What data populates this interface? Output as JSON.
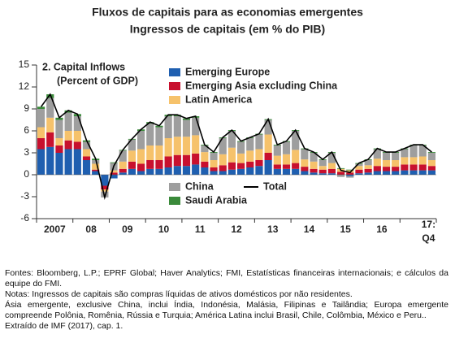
{
  "chart_data": {
    "type": "bar",
    "title": "Fluxos de capitais para as economias emergentes",
    "subtitle": "Ingressos de capitais (em % do PIB)",
    "panel_title": "2. Capital Inflows",
    "panel_subtitle": "(Percent of GDP)",
    "categories": [
      null,
      "2007",
      null,
      null,
      null,
      "08",
      null,
      null,
      null,
      "09",
      null,
      null,
      null,
      "10",
      null,
      null,
      null,
      "11",
      null,
      null,
      null,
      "12",
      null,
      null,
      null,
      "13",
      null,
      null,
      null,
      "14",
      null,
      null,
      null,
      "15",
      null,
      null,
      null,
      "16",
      null,
      null,
      null,
      null,
      null,
      "17: Q4"
    ],
    "series": [
      {
        "name": "Emerging Europe",
        "color": "#1f5fb0",
        "values": [
          3.5,
          3.8,
          3,
          3.5,
          3.5,
          2,
          0.5,
          -1.5,
          -0.5,
          0.3,
          0.8,
          0.5,
          0.8,
          0.8,
          1,
          1.2,
          1.2,
          1.4,
          1,
          0.5,
          0.5,
          0.7,
          0.8,
          1,
          1.2,
          2,
          0.8,
          0.8,
          0.8,
          0.5,
          0.3,
          0.2,
          0.2,
          0,
          -0.2,
          0.2,
          0.3,
          0.5,
          0.5,
          0.5,
          0.6,
          0.6,
          0.6,
          0.6
        ]
      },
      {
        "name": "Emerging Asia excluding China",
        "color": "#c8102e",
        "values": [
          1.5,
          2,
          1,
          1.2,
          1,
          0.5,
          0.2,
          -0.5,
          0.3,
          0.5,
          1,
          1,
          1.2,
          1.2,
          1.5,
          1.5,
          1.5,
          1.5,
          0.8,
          0.5,
          0.8,
          1,
          0.8,
          0.8,
          0.8,
          1,
          0.6,
          0.6,
          0.8,
          0.6,
          0.5,
          0.5,
          0.6,
          0.4,
          0.3,
          0.5,
          0.5,
          0.7,
          0.6,
          0.6,
          0.8,
          0.8,
          0.8,
          0.6
        ]
      },
      {
        "name": "Latin America",
        "color": "#f6c26b",
        "values": [
          1.5,
          2,
          1,
          1.3,
          1.5,
          1,
          0.8,
          -0.3,
          0.3,
          1,
          1.5,
          2,
          2,
          2,
          2.5,
          2.5,
          2.5,
          2.5,
          1.3,
          1,
          1.5,
          2,
          1.3,
          1.5,
          1.5,
          2.5,
          1.2,
          1.4,
          1.8,
          1,
          1,
          0.5,
          0.8,
          0.4,
          0.3,
          0.5,
          0.5,
          1,
          0.9,
          0.9,
          1,
          1,
          1.1,
          0.8
        ]
      },
      {
        "name": "China",
        "color": "#9e9e9e",
        "values": [
          2.5,
          2.7,
          2.5,
          2.5,
          2,
          1,
          0.5,
          -0.8,
          1,
          1.5,
          1.5,
          2.5,
          3,
          2.5,
          3,
          2.8,
          2.3,
          2.4,
          0.9,
          1,
          2.2,
          2.3,
          1.6,
          1.7,
          2,
          2,
          1.4,
          1.7,
          2.6,
          1.4,
          1.2,
          0.8,
          1.4,
          -0.3,
          -0.2,
          0.3,
          0.7,
          1.3,
          1,
          1,
          1.1,
          1.6,
          1.5,
          1
        ]
      },
      {
        "name": "Saudi Arabia",
        "color": "#3a8a3a",
        "values": [
          0.3,
          0.5,
          0.3,
          0.3,
          0.3,
          0.2,
          0.2,
          0,
          0.1,
          0.1,
          0.1,
          0.2,
          0.2,
          0.2,
          0.2,
          0.2,
          0.2,
          0.2,
          0.1,
          0.1,
          0.1,
          0.1,
          0.1,
          0.1,
          0.1,
          0.1,
          0.1,
          0.1,
          0.1,
          0.1,
          0.1,
          0.1,
          0.1,
          0.1,
          0.1,
          0.1,
          0.1,
          0.1,
          0.1,
          0.1,
          0.1,
          0.1,
          0.1,
          0.1
        ]
      },
      {
        "name": "Total",
        "color": "#000000",
        "mark": "line",
        "values": [
          9.3,
          11,
          7.8,
          8.8,
          8.3,
          4.7,
          2.2,
          -3.1,
          1.2,
          3.4,
          4.9,
          6.2,
          7.2,
          6.7,
          8.2,
          8.2,
          7.7,
          8,
          4.1,
          3.1,
          5.1,
          6.1,
          4.6,
          5.1,
          5.6,
          7.6,
          4.1,
          4.6,
          6.1,
          3.6,
          3.1,
          2.1,
          3.1,
          0.6,
          0.3,
          1.6,
          2.1,
          3.6,
          3.1,
          3.1,
          3.6,
          4.1,
          4.1,
          3.1
        ]
      }
    ],
    "ylim": [
      -6,
      15
    ],
    "yticks": [
      -6,
      -3,
      0,
      3,
      6,
      9,
      12,
      15
    ],
    "grid": false
  },
  "notes": [
    "Fontes: Bloomberg, L.P.; EPRF Global; Haver Analytics; FMI, Estatísticas financeiras internacionais; e cálculos da equipe do FMI.",
    "Notas: Ingressos de capitais são compras líquidas de ativos domésticos por não residentes.",
    "Ásia emergente, exclusive China, inclui Índia, Indonésia, Malásia, Filipinas e Tailândia; Europa emergente compreende Polônia, Romênia, Rússia e Turquia; América Latina inclui Brasil, Chile, Colômbia, México e Peru..",
    "Extraído de IMF (2017), cap. 1."
  ]
}
